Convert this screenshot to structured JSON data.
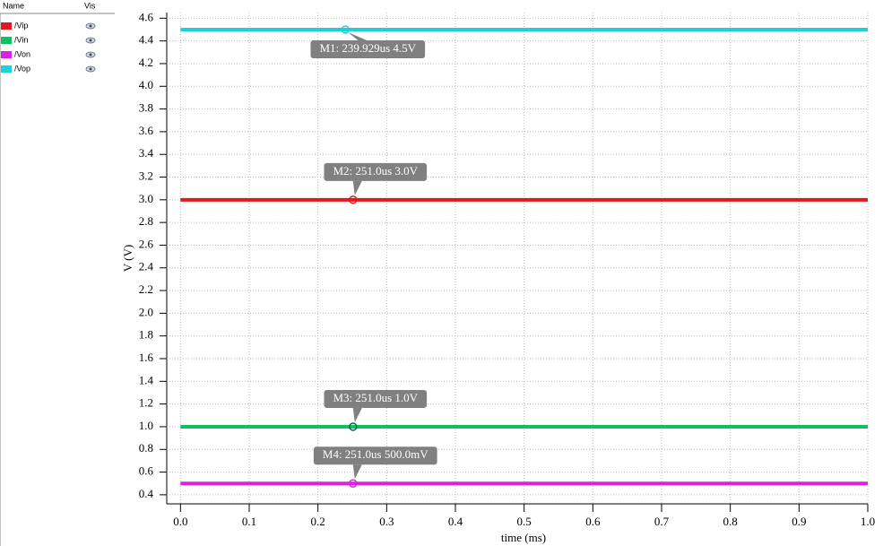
{
  "panel": {
    "headers": [
      "Name",
      "Vis"
    ]
  },
  "chart_data": {
    "type": "line",
    "x_label": "time (ms)",
    "y_label": "V (V)",
    "x": [
      0,
      1.0
    ],
    "series": [
      {
        "name": "/Vip",
        "color": "#e31a1c",
        "values": [
          3.0,
          3.0
        ]
      },
      {
        "name": "/Vin",
        "color": "#10c060",
        "values": [
          1.0,
          1.0
        ]
      },
      {
        "name": "/Von",
        "color": "#e020e0",
        "values": [
          0.5,
          0.5
        ]
      },
      {
        "name": "/Vop",
        "color": "#20d0d8",
        "values": [
          4.5,
          4.5
        ]
      }
    ],
    "markers": [
      {
        "label": "M1: 239.929us 4.5V",
        "series": "/Vop",
        "x": 0.239929,
        "y": 4.5
      },
      {
        "label": "M2: 251.0us 3.0V",
        "series": "/Vip",
        "x": 0.251,
        "y": 3.0
      },
      {
        "label": "M3: 251.0us 1.0V",
        "series": "/Vin",
        "x": 0.251,
        "y": 1.0
      },
      {
        "label": "M4: 251.0us 500.0mV",
        "series": "/Von",
        "x": 0.251,
        "y": 0.5
      }
    ],
    "xlim": [
      -0.02,
      1.0
    ],
    "ylim": [
      0.32,
      4.65
    ],
    "xticks": [
      {
        "value": 0,
        "label": "0.0"
      },
      0.1,
      0.2,
      0.3,
      0.4,
      0.5,
      0.6,
      0.7,
      0.8,
      0.9,
      {
        "value": 1.0,
        "label": "1.0"
      }
    ],
    "yticks": [
      0.4,
      0.6,
      0.8,
      {
        "value": 1.0,
        "label": "1.0"
      },
      1.2,
      1.4,
      1.6,
      1.8,
      {
        "value": 2.0,
        "label": "2.0"
      },
      2.2,
      2.4,
      2.6,
      2.8,
      {
        "value": 3.0,
        "label": "3.0"
      },
      3.2,
      3.4,
      3.6,
      3.8,
      {
        "value": 4.0,
        "label": "4.0"
      },
      4.2,
      4.4,
      4.6
    ],
    "grid": true
  }
}
